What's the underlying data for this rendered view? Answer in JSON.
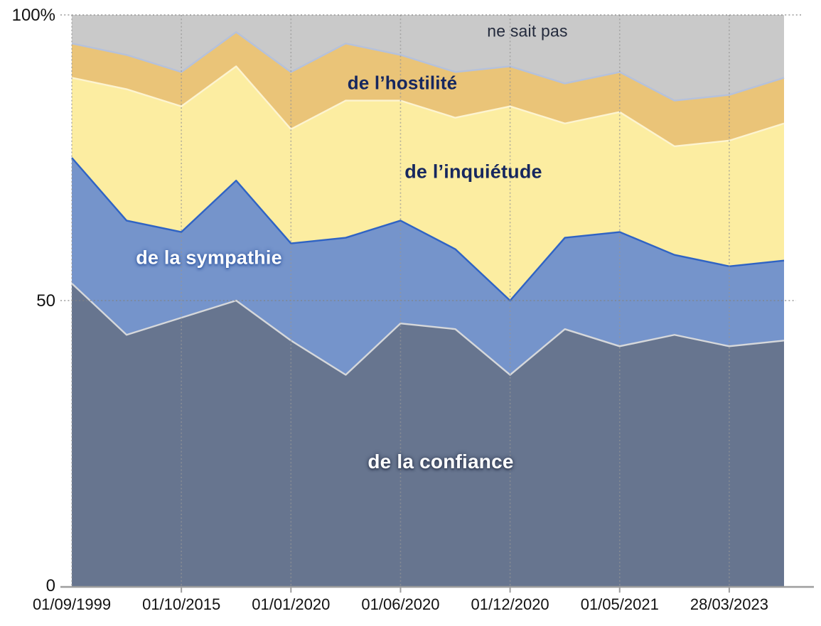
{
  "chart_data": {
    "type": "area",
    "stacked": true,
    "unit": "%",
    "title": "",
    "xlabel": "",
    "ylabel": "",
    "ylim": [
      0,
      100
    ],
    "grid": "dotted",
    "legend": "labels drawn inside areas",
    "y_tick_labels": [
      "0",
      "50",
      "100%"
    ],
    "x_tick_labels": [
      "01/09/1999",
      "01/10/2015",
      "01/01/2020",
      "01/06/2020",
      "01/12/2020",
      "01/05/2021",
      "28/03/2023"
    ],
    "categories": [
      "01/09/1999",
      "",
      "01/10/2015",
      "",
      "01/01/2020",
      "",
      "01/06/2020",
      "",
      "01/12/2020",
      "",
      "01/05/2021",
      "",
      "28/03/2023",
      ""
    ],
    "series": [
      {
        "id": "confiance",
        "name": "de la confiance",
        "color": "#67758f",
        "stroke": "#d6d8db",
        "values": [
          53,
          44,
          47,
          50,
          43,
          37,
          46,
          45,
          37,
          45,
          42,
          44,
          42,
          43
        ]
      },
      {
        "id": "sympathie",
        "name": "de la sympathie",
        "color": "#7594cb",
        "stroke": "#2f63c4",
        "values": [
          22,
          20,
          15,
          21,
          17,
          24,
          18,
          14,
          13,
          16,
          20,
          14,
          14,
          14
        ]
      },
      {
        "id": "inquietude",
        "name": "de l’inquiétude",
        "color": "#fceda1",
        "stroke": "#fdf4d0",
        "values": [
          14,
          23,
          22,
          20,
          20,
          24,
          21,
          23,
          34,
          20,
          21,
          19,
          22,
          24
        ]
      },
      {
        "id": "hostilite",
        "name": "de l’hostilité",
        "color": "#eac478",
        "stroke": "#b5c1db",
        "values": [
          6,
          6,
          6,
          6,
          10,
          10,
          8,
          8,
          7,
          7,
          7,
          8,
          8,
          8
        ]
      },
      {
        "id": "ne_sait_pas",
        "name": "ne sait pas",
        "color": "#c9c9c9",
        "stroke": null,
        "values": [
          5,
          7,
          10,
          3,
          10,
          5,
          7,
          10,
          9,
          12,
          10,
          15,
          14,
          11
        ]
      }
    ]
  },
  "y_axis": {
    "label_100": "100%",
    "label_50": "50",
    "label_0": "0"
  },
  "area_labels": [
    {
      "text": "de la confiance",
      "color": "#ffffff"
    },
    {
      "text": "de la sympathie",
      "color": "#ffffff"
    },
    {
      "text": "de l’inquiétude",
      "color": "#16275f"
    },
    {
      "text": "de l’hostilité",
      "color": "#16275f"
    },
    {
      "text": "ne sait pas",
      "color": "#232a3c"
    }
  ]
}
